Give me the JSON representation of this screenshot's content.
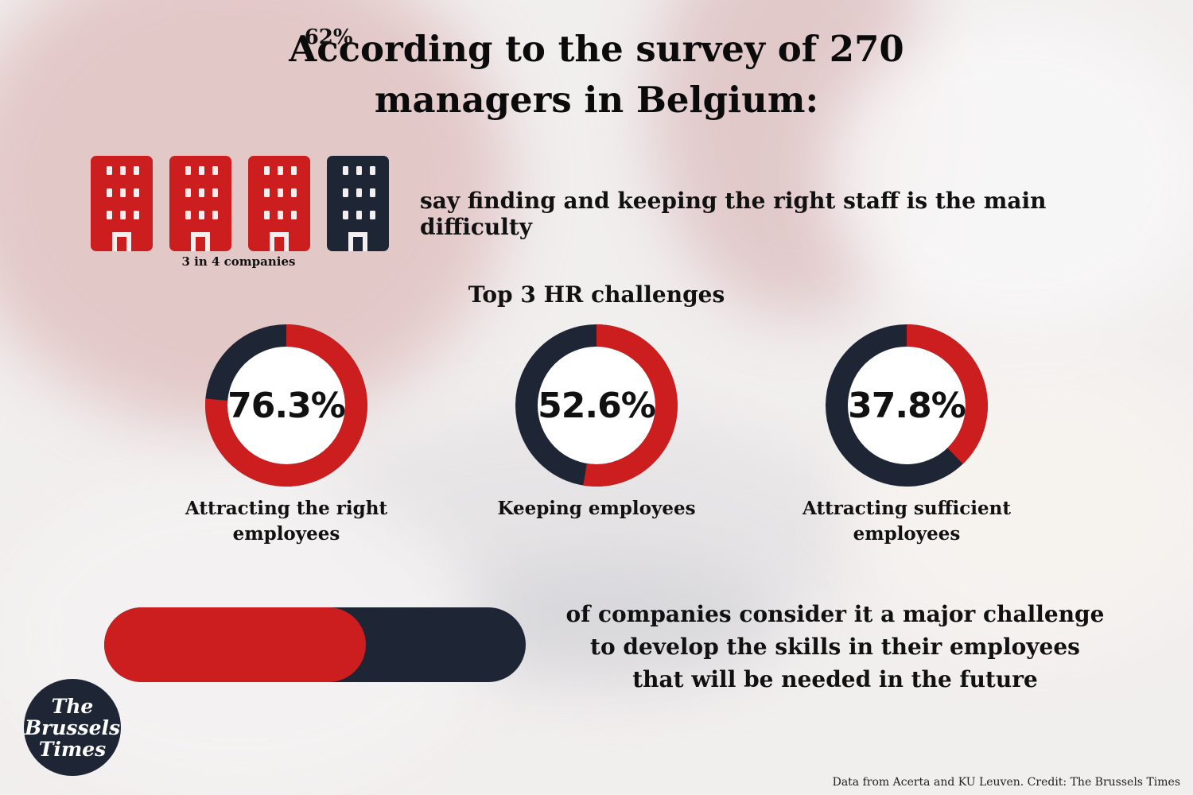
{
  "title_line1": "According to the survey of 270",
  "title_line2": "managers in Belgium:",
  "companies": {
    "label": "3 in 4 companies",
    "highlighted": 3,
    "total": 4,
    "statement": "say finding and keeping the right staff is the main difficulty",
    "icon": "building-icon"
  },
  "colors": {
    "red": "#cc1d1f",
    "navy": "#1e2635"
  },
  "section_title": "Top 3 HR challenges",
  "chart_data": [
    {
      "type": "pie",
      "title": "Top 3 HR challenges",
      "series": [
        {
          "name": "Attracting the right employees",
          "value": 76.3,
          "display": "76.3%",
          "label_lines": [
            "Attracting the right",
            "employees"
          ]
        },
        {
          "name": "Keeping employees",
          "value": 52.6,
          "display": "52.6%",
          "label_lines": [
            "Keeping employees"
          ]
        },
        {
          "name": "Attracting sufficient employees",
          "value": 37.8,
          "display": "37.8%",
          "label_lines": [
            "Attracting sufficient",
            "employees"
          ]
        }
      ]
    },
    {
      "type": "bar",
      "value": 62,
      "display": "62%",
      "max": 100,
      "caption_lines": [
        "of companies consider it a major challenge",
        "to develop the skills in their employees",
        "that will be needed in the future"
      ]
    }
  ],
  "logo_lines": [
    "The",
    "Brussels",
    "Times"
  ],
  "credit": "Data from Acerta and KU Leuven. Credit: The Brussels Times"
}
